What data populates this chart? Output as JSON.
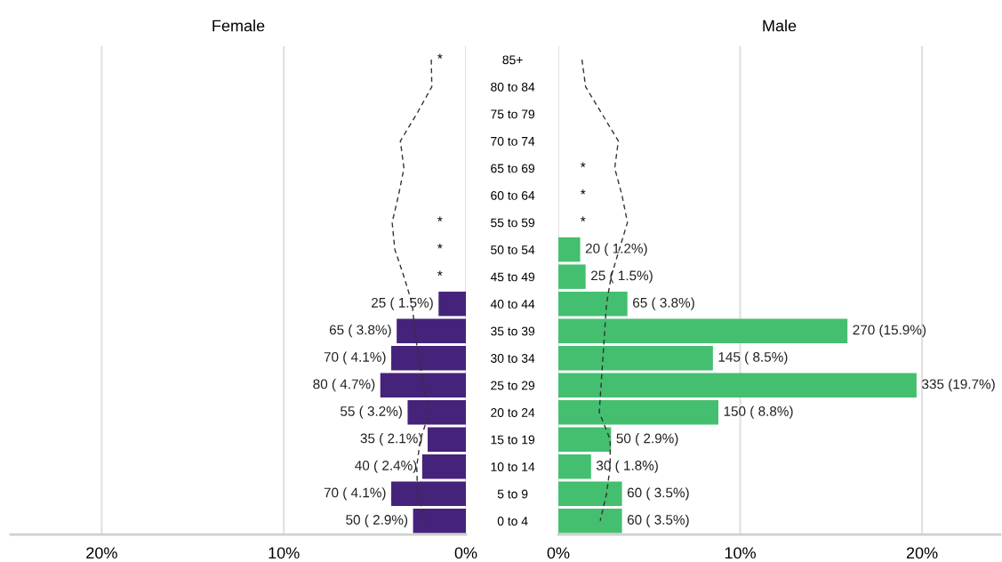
{
  "chart_data": [
    {
      "type": "bar",
      "orientation": "horizontal",
      "title": "Female",
      "tick_labels": "x",
      "grid": "x",
      "xlim": [
        25,
        0
      ],
      "xticks": [
        {
          "value": 20,
          "label": "20%"
        },
        {
          "value": 10,
          "label": "10%"
        },
        {
          "value": 0,
          "label": "0%"
        }
      ],
      "categories": [
        "85+",
        "80 to 84",
        "75 to 79",
        "70 to 74",
        "65 to 69",
        "60 to 64",
        "55 to 59",
        "50 to 54",
        "45 to 49",
        "40 to 44",
        "35 to 39",
        "30 to 34",
        "25 to 29",
        "20 to 24",
        "15 to 19",
        "10 to 14",
        "5 to 9",
        "0 to 4"
      ],
      "series": [
        {
          "color": "#46237a",
          "values": [
            null,
            null,
            null,
            null,
            null,
            null,
            null,
            null,
            null,
            1.5,
            3.8,
            4.1,
            4.7,
            3.2,
            2.1,
            2.4,
            4.1,
            2.9
          ],
          "value_labels": [
            "*",
            null,
            null,
            null,
            null,
            null,
            "*",
            "*",
            "*",
            "25 ( 1.5%)",
            "65 ( 3.8%)",
            "70 ( 4.1%)",
            "80 ( 4.7%)",
            "55 ( 3.2%)",
            "35 ( 2.1%)",
            "40 ( 2.4%)",
            "70 ( 4.1%)",
            "50 ( 2.9%)"
          ]
        },
        {
          "type": "line",
          "color": "#333333",
          "line_style": "dashed",
          "values": [
            1.9,
            1.87,
            2.7,
            3.6,
            3.4,
            3.7,
            4.05,
            3.9,
            3.4,
            2.95,
            2.8,
            2.6,
            2.3,
            2.0,
            2.5,
            2.7,
            2.65,
            2.2
          ]
        }
      ]
    },
    {
      "type": "bar",
      "orientation": "horizontal",
      "title": "Male",
      "grid": "x",
      "xlim": [
        0,
        24.3
      ],
      "xticks": [
        {
          "value": 0,
          "label": "0%"
        },
        {
          "value": 10,
          "label": "10%"
        },
        {
          "value": 20,
          "label": "20%"
        }
      ],
      "categories": [
        "85+",
        "80 to 84",
        "75 to 79",
        "70 to 74",
        "65 to 69",
        "60 to 64",
        "55 to 59",
        "50 to 54",
        "45 to 49",
        "40 to 44",
        "35 to 39",
        "30 to 34",
        "25 to 29",
        "20 to 24",
        "15 to 19",
        "10 to 14",
        "5 to 9",
        "0 to 4"
      ],
      "series": [
        {
          "color": "#44bf70",
          "values": [
            null,
            null,
            null,
            null,
            null,
            null,
            null,
            1.2,
            1.5,
            3.8,
            15.9,
            8.5,
            19.7,
            8.8,
            2.9,
            1.8,
            3.5,
            3.5
          ],
          "value_labels": [
            null,
            null,
            null,
            null,
            "*",
            "*",
            "*",
            "20 ( 1.2%)",
            "25 ( 1.5%)",
            "65 ( 3.8%)",
            "270 (15.9%)",
            "145 ( 8.5%)",
            "335 (19.7%)",
            "150 ( 8.8%)",
            "50 ( 2.9%)",
            "30 ( 1.8%)",
            "60 ( 3.5%)",
            "60 ( 3.5%)"
          ]
        },
        {
          "type": "line",
          "color": "#333333",
          "line_style": "dashed",
          "values": [
            1.3,
            1.5,
            2.4,
            3.3,
            3.1,
            3.5,
            3.8,
            3.35,
            2.9,
            2.65,
            2.55,
            2.45,
            2.35,
            2.25,
            2.85,
            2.85,
            2.65,
            2.3
          ]
        }
      ]
    }
  ]
}
